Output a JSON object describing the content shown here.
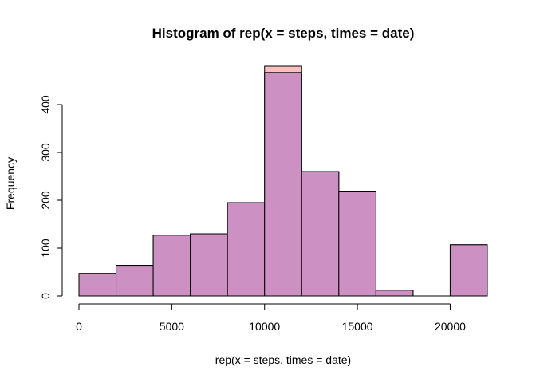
{
  "chart_data": {
    "type": "bar",
    "title": "Histogram of rep(x = steps, times = date)",
    "xlabel": "rep(x = steps, times = date)",
    "ylabel": "Frequency",
    "xlim": [
      0,
      22000
    ],
    "ylim": [
      0,
      480
    ],
    "x_ticks": [
      0,
      5000,
      10000,
      15000,
      20000
    ],
    "y_ticks": [
      0,
      100,
      200,
      300,
      400
    ],
    "x_tick_labels": [
      "0",
      "5000",
      "10000",
      "15000",
      "20000"
    ],
    "y_tick_labels": [
      "0",
      "100",
      "200",
      "300",
      "400"
    ],
    "grid": false,
    "bin_edges": [
      0,
      2000,
      4000,
      6000,
      8000,
      10000,
      12000,
      14000,
      16000,
      18000,
      20000,
      22000
    ],
    "series": [
      {
        "role": "background",
        "color": "#f9c0c0",
        "values": [
          47,
          64,
          127,
          130,
          195,
          480,
          260,
          219,
          12,
          0,
          107
        ]
      },
      {
        "role": "foreground",
        "color": "#cc90c2",
        "values": [
          47,
          64,
          127,
          130,
          195,
          467,
          260,
          219,
          12,
          0,
          107
        ]
      }
    ]
  }
}
